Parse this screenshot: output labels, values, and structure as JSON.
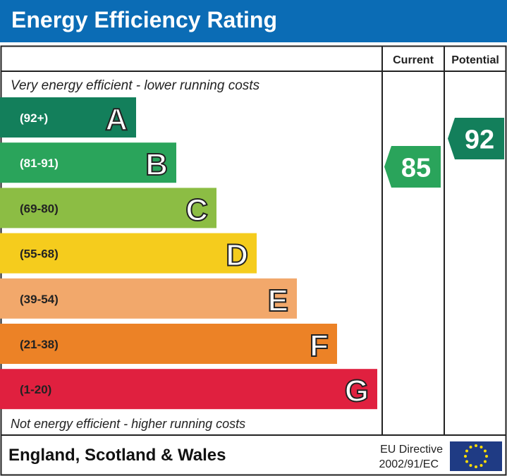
{
  "title": "Energy Efficiency Rating",
  "chart_data": {
    "type": "bar",
    "columns": [
      "Current",
      "Potential"
    ],
    "top_note": "Very energy efficient - lower running costs",
    "bottom_note": "Not energy efficient - higher running costs",
    "bands": [
      {
        "letter": "A",
        "range": "(92+)",
        "color": "#137f5b"
      },
      {
        "letter": "B",
        "range": "(81-91)",
        "color": "#2aa45b"
      },
      {
        "letter": "C",
        "range": "(69-80)",
        "color": "#8cbd44"
      },
      {
        "letter": "D",
        "range": "(55-68)",
        "color": "#f5cc1d"
      },
      {
        "letter": "E",
        "range": "(39-54)",
        "color": "#f2a86b"
      },
      {
        "letter": "F",
        "range": "(21-38)",
        "color": "#ec8226"
      },
      {
        "letter": "G",
        "range": "(1-20)",
        "color": "#e0203f"
      }
    ],
    "current": {
      "value": "85",
      "band": "B",
      "color": "#2aa45b"
    },
    "potential": {
      "value": "92",
      "band": "A",
      "color": "#137f5b"
    }
  },
  "footer": {
    "region": "England, Scotland & Wales",
    "directive_line1": "EU Directive",
    "directive_line2": "2002/91/EC",
    "flag_color": "#1f3b84",
    "star_color": "#ffdd00"
  }
}
